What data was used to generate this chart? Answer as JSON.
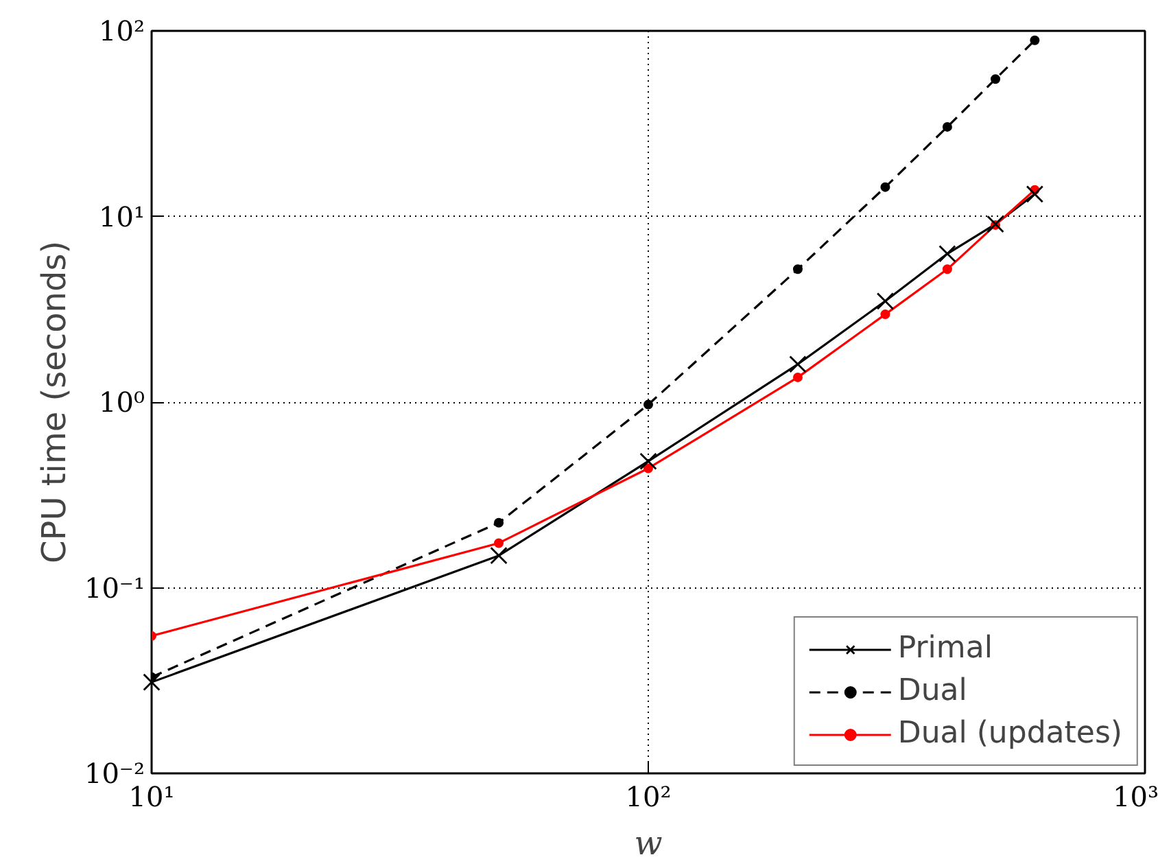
{
  "chart_data": {
    "type": "line",
    "xlabel": "w",
    "ylabel": "CPU time (seconds)",
    "log": "xy",
    "grid": true,
    "legend": "bottom right",
    "x": [
      10,
      50,
      100,
      200,
      300,
      400,
      500,
      600
    ],
    "xlim": [
      10,
      1000
    ],
    "xticks": [
      {
        "value": 10,
        "label": "10¹"
      },
      {
        "value": 100,
        "label": "10²"
      },
      {
        "value": 1000,
        "label": "10³"
      }
    ],
    "ylim": [
      0.01,
      100
    ],
    "yticks": [
      {
        "value": 0.01,
        "label": "10⁻²"
      },
      {
        "value": 0.1,
        "label": "10⁻¹"
      },
      {
        "value": 1,
        "label": "10⁰"
      },
      {
        "value": 10,
        "label": "10¹"
      },
      {
        "value": 100,
        "label": "10²"
      }
    ],
    "series": [
      {
        "name": "Primal",
        "color": "#000000",
        "marker": "cross",
        "line_style": "solid",
        "values": [
          0.031,
          0.149,
          0.48,
          1.6,
          3.5,
          6.3,
          9.1,
          13.2
        ]
      },
      {
        "name": "Dual",
        "color": "#000000",
        "marker": "circle",
        "line_style": "dashed",
        "values": [
          0.033,
          0.224,
          0.97,
          5.2,
          14.4,
          30.4,
          55,
          89
        ]
      },
      {
        "name": "Dual (updates)",
        "color": "#ff0000",
        "marker": "circle",
        "line_style": "solid",
        "values": [
          0.055,
          0.174,
          0.44,
          1.36,
          2.97,
          5.2,
          9.0,
          13.9
        ]
      }
    ]
  }
}
